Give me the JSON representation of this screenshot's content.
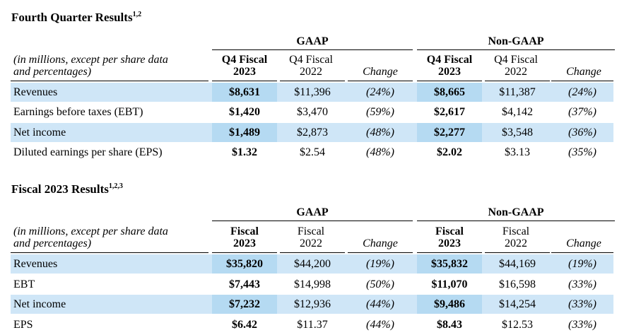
{
  "tables": [
    {
      "title": "Fourth Quarter Results",
      "title_sup": "1,2",
      "group_gaap": "GAAP",
      "group_nongaap": "Non-GAAP",
      "label_line1": "(in millions, except per share data",
      "label_line2": "and percentages)",
      "columns": {
        "current_l1": "Q4 Fiscal",
        "current_l2": "2023",
        "prior_l1": "Q4 Fiscal",
        "prior_l2": "2022",
        "change": "Change"
      },
      "rows": [
        {
          "label": "Revenues",
          "gaap_cur": "$8,631",
          "gaap_prior": "$11,396",
          "gaap_chg": "(24%)",
          "ng_cur": "$8,665",
          "ng_prior": "$11,387",
          "ng_chg": "(24%)"
        },
        {
          "label": "Earnings before taxes (EBT)",
          "gaap_cur": "$1,420",
          "gaap_prior": "$3,470",
          "gaap_chg": "(59%)",
          "ng_cur": "$2,617",
          "ng_prior": "$4,142",
          "ng_chg": "(37%)"
        },
        {
          "label": "Net income",
          "gaap_cur": "$1,489",
          "gaap_prior": "$2,873",
          "gaap_chg": "(48%)",
          "ng_cur": "$2,277",
          "ng_prior": "$3,548",
          "ng_chg": "(36%)"
        },
        {
          "label": "Diluted earnings per share (EPS)",
          "gaap_cur": "$1.32",
          "gaap_prior": "$2.54",
          "gaap_chg": "(48%)",
          "ng_cur": "$2.02",
          "ng_prior": "$3.13",
          "ng_chg": "(35%)"
        }
      ]
    },
    {
      "title": "Fiscal 2023 Results",
      "title_sup": "1,2,3",
      "group_gaap": "GAAP",
      "group_nongaap": "Non-GAAP",
      "label_line1": "(in millions, except per share data",
      "label_line2": "and percentages)",
      "columns": {
        "current_l1": "Fiscal",
        "current_l2": "2023",
        "prior_l1": "Fiscal",
        "prior_l2": "2022",
        "change": "Change"
      },
      "rows": [
        {
          "label": "Revenues",
          "gaap_cur": "$35,820",
          "gaap_prior": "$44,200",
          "gaap_chg": "(19%)",
          "ng_cur": "$35,832",
          "ng_prior": "$44,169",
          "ng_chg": "(19%)"
        },
        {
          "label": "EBT",
          "gaap_cur": "$7,443",
          "gaap_prior": "$14,998",
          "gaap_chg": "(50%)",
          "ng_cur": "$11,070",
          "ng_prior": "$16,598",
          "ng_chg": "(33%)"
        },
        {
          "label": "Net income",
          "gaap_cur": "$7,232",
          "gaap_prior": "$12,936",
          "gaap_chg": "(44%)",
          "ng_cur": "$9,486",
          "ng_prior": "$14,254",
          "ng_chg": "(33%)"
        },
        {
          "label": "EPS",
          "gaap_cur": "$6.42",
          "gaap_prior": "$11.37",
          "gaap_chg": "(44%)",
          "ng_cur": "$8.43",
          "ng_prior": "$12.53",
          "ng_chg": "(33%)"
        }
      ]
    }
  ]
}
